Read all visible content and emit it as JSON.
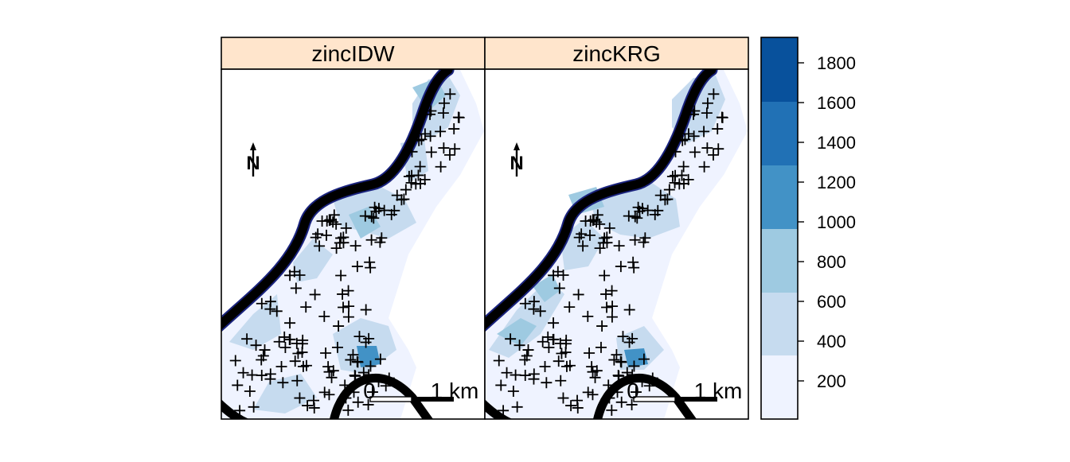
{
  "panels": [
    {
      "name": "panel-zincidw",
      "title": "zincIDW"
    },
    {
      "name": "panel-zinckrg",
      "title": "zincKRG"
    }
  ],
  "scalebar": {
    "start_label": "0",
    "end_label": "1 km"
  },
  "north_arrow": {
    "label": "N"
  },
  "legend": {
    "ticks": [
      "1800",
      "1600",
      "1400",
      "1200",
      "1000",
      "800",
      "600",
      "400",
      "200"
    ],
    "colors": [
      "#eff3ff",
      "#c6dbef",
      "#9ecae1",
      "#4292c6",
      "#2171b5",
      "#08519c"
    ]
  },
  "colors": {
    "strip": "#ffe5cc",
    "river": "#000000",
    "river_outline": "#1a237e",
    "points": "#000000"
  }
}
